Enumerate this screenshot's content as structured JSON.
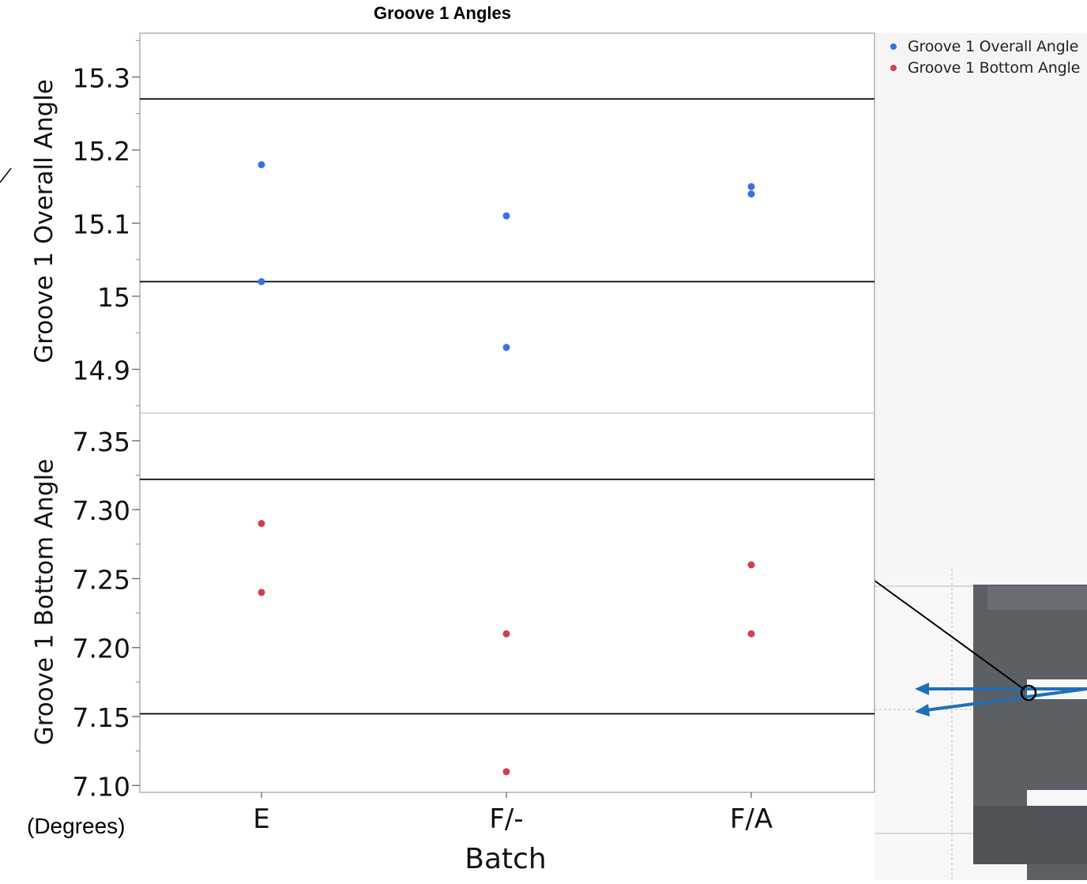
{
  "chart_data": {
    "type": "scatter",
    "title": "Groove 1 Angles",
    "xlabel": "Batch",
    "units_label": "(Degrees)",
    "categories": [
      "E",
      "F/-",
      "F/A"
    ],
    "legend_position": "top-right",
    "panels": [
      {
        "ylabel": "Groove 1 Overall Angle",
        "ylim": [
          14.84,
          15.36
        ],
        "yticks": [
          "14.9",
          "15",
          "15.1",
          "15.2",
          "15.3"
        ],
        "reference_lines": [
          15.02,
          15.27
        ],
        "series": [
          {
            "name": "Groove 1 Overall Angle",
            "color": "#3b6fe0",
            "points": [
              [
                "E",
                15.18
              ],
              [
                "E",
                15.02
              ],
              [
                "F/-",
                15.11
              ],
              [
                "F/-",
                14.93
              ],
              [
                "F/A",
                15.15
              ],
              [
                "F/A",
                15.14
              ]
            ]
          }
        ]
      },
      {
        "ylabel": "Groove 1 Bottom Angle",
        "ylim": [
          7.095,
          7.37
        ],
        "yticks": [
          "7.10",
          "7.15",
          "7.20",
          "7.25",
          "7.30",
          "7.35"
        ],
        "reference_lines": [
          7.152,
          7.322
        ],
        "series": [
          {
            "name": "Groove 1 Bottom Angle",
            "color": "#d0404e",
            "points": [
              [
                "E",
                7.29
              ],
              [
                "E",
                7.24
              ],
              [
                "F/-",
                7.21
              ],
              [
                "F/-",
                7.11
              ],
              [
                "F/A",
                7.26
              ],
              [
                "F/A",
                7.21
              ]
            ]
          }
        ]
      }
    ]
  },
  "legend": [
    {
      "label": "Groove 1 Overall Angle",
      "color": "#3b6fe0"
    },
    {
      "label": "Groove 1 Bottom Angle",
      "color": "#d0404e"
    }
  ],
  "inset": {
    "description_icon": "groove-part-photo-icon",
    "arrow_color": "#1f6fb8",
    "part_color": "#5c5f63"
  }
}
